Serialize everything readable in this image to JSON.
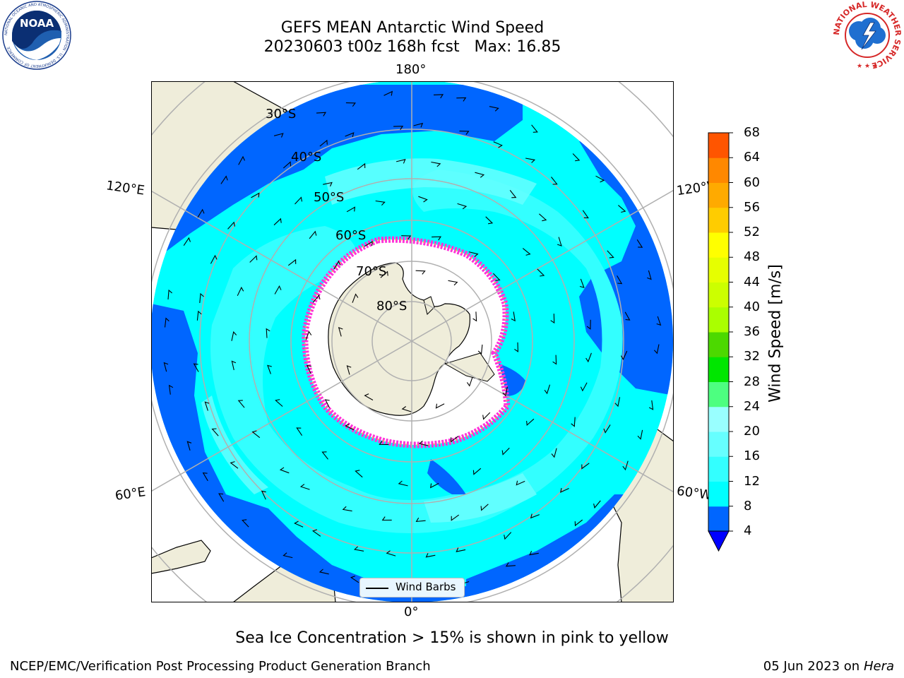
{
  "title": {
    "line1": "GEFS MEAN Antarctic Wind Speed",
    "line2": "20230603 t00z 168h fcst   Max: 16.85"
  },
  "map": {
    "projection": "south-polar-stereographic",
    "longitude_labels": {
      "top": "180°",
      "bottom": "0°",
      "upper_left": "120°E",
      "upper_right": "120°W",
      "lower_left": "60°E",
      "lower_right": "60°W"
    },
    "latitude_labels": [
      "30°S",
      "40°S",
      "50°S",
      "60°S",
      "70°S",
      "80°S"
    ],
    "legend": {
      "label": "Wind Barbs"
    },
    "colors": {
      "land": "#efedda",
      "ice_edge": "#ff33d9",
      "ice_edge_2": "#ffb84d"
    }
  },
  "colorbar": {
    "title": "Wind Speed [m/s]",
    "ticks": [
      "4",
      "8",
      "12",
      "16",
      "20",
      "24",
      "28",
      "32",
      "36",
      "40",
      "44",
      "48",
      "52",
      "56",
      "60",
      "64",
      "68"
    ],
    "extend": "min",
    "colors": [
      "#0066ff",
      "#00ffff",
      "#33ffff",
      "#66ffff",
      "#99ffff",
      "#4dff80",
      "#00e600",
      "#4cd900",
      "#aaff00",
      "#ccff00",
      "#e6ff00",
      "#ffff00",
      "#ffcc00",
      "#ffaa00",
      "#ff8800",
      "#ff5500",
      "#ff2200",
      "#ff0000"
    ],
    "under_color": "#0000ff"
  },
  "note": "Sea Ice Concentration > 15% is shown in pink to yellow",
  "footer": {
    "credit": "NCEP/EMC/Verification Post Processing Product Generation Branch",
    "date": "05 Jun 2023 on",
    "machine": "Hera"
  },
  "logos": {
    "noaa": {
      "text": "NOAA",
      "ring_text": "NATIONAL OCEANIC AND ATMOSPHERIC ADMINISTRATION · U.S. DEPARTMENT OF COMMERCE"
    },
    "nws": {
      "ring_text": "NATIONAL WEATHER SERVICE"
    }
  }
}
